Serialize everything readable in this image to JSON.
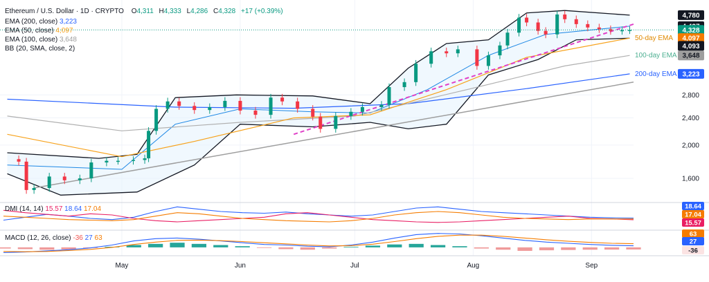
{
  "header": {
    "symbol": "Ethereum / U.S. Dollar · 1D · CRYPTO",
    "ohlc": [
      {
        "k": "O",
        "v": "4,311"
      },
      {
        "k": "H",
        "v": "4,333"
      },
      {
        "k": "L",
        "v": "4,286"
      },
      {
        "k": "C",
        "v": "4,328"
      }
    ],
    "change": "+17 (+0.39%)",
    "colors": {
      "up": "#089981",
      "down": "#f23645",
      "text": "#131722",
      "grid": "#f0f3fa"
    }
  },
  "indicators": [
    {
      "label": "EMA (200, close)",
      "value": "3,223",
      "color": "#2962ff"
    },
    {
      "label": "EMA (50, close)",
      "value": "4,097",
      "color": "#f7a21b"
    },
    {
      "label": "EMA (100, close)",
      "value": "3,648",
      "color": "#9e9e9e"
    },
    {
      "label": "BB (20, SMA, close, 2)",
      "value": "",
      "color": "#131722"
    }
  ],
  "annotations": [
    {
      "text": "50-day EMA",
      "color": "#e08a00",
      "price": 4097
    },
    {
      "text": "100-day EMA",
      "color": "#4caf91",
      "price": 3648
    },
    {
      "text": "200-day EMA",
      "color": "#2962ff",
      "price": 3223
    }
  ],
  "price_tags": [
    {
      "text": "4,780",
      "price": 4780,
      "bg": "#131722",
      "fg": "#ffffff"
    },
    {
      "text": "4,437",
      "price": 4437,
      "bg": "#131722",
      "fg": "#ffffff"
    },
    {
      "text": "4,328",
      "price": 4328,
      "bg": "#089981",
      "fg": "#ffffff"
    },
    {
      "text": "4,097",
      "price": 4097,
      "bg": "#f57c00",
      "fg": "#ffffff"
    },
    {
      "text": "4,093",
      "price": 4093,
      "bg": "#131722",
      "fg": "#ffffff"
    },
    {
      "text": "3,648",
      "price": 3648,
      "bg": "#9e9e9e",
      "fg": "#131722"
    },
    {
      "text": "3,223",
      "price": 3223,
      "bg": "#2962ff",
      "fg": "#ffffff"
    }
  ],
  "chart_data": {
    "type": "line",
    "y_scale": "log",
    "ylim": [
      1380,
      5050
    ],
    "y_ticks": [
      {
        "label": "2,800",
        "value": 2800
      },
      {
        "label": "2,400",
        "value": 2400
      },
      {
        "label": "2,000",
        "value": 2000
      },
      {
        "label": "1,600",
        "value": 1600
      }
    ],
    "x_ticks": [
      {
        "label": "May",
        "x": "2025-05-01"
      },
      {
        "label": "Jun",
        "x": "2025-06-01"
      },
      {
        "label": "Jul",
        "x": "2025-07-01"
      },
      {
        "label": "Aug",
        "x": "2025-08-01"
      },
      {
        "label": "Sep",
        "x": "2025-09-01"
      }
    ],
    "x_range": [
      "2025-03-31",
      "2025-09-12"
    ],
    "current_price": 4328,
    "close_series": [
      [
        "2025-04-01",
        1820
      ],
      [
        "2025-04-04",
        1790
      ],
      [
        "2025-04-06",
        1480
      ],
      [
        "2025-04-08",
        1500
      ],
      [
        "2025-04-12",
        1620
      ],
      [
        "2025-04-16",
        1580
      ],
      [
        "2025-04-20",
        1600
      ],
      [
        "2025-04-23",
        1780
      ],
      [
        "2025-04-27",
        1800
      ],
      [
        "2025-04-30",
        1800
      ],
      [
        "2025-05-04",
        1810
      ],
      [
        "2025-05-07",
        1830
      ],
      [
        "2025-05-08",
        2200
      ],
      [
        "2025-05-10",
        2550
      ],
      [
        "2025-05-13",
        2680
      ],
      [
        "2025-05-16",
        2600
      ],
      [
        "2025-05-20",
        2530
      ],
      [
        "2025-05-24",
        2580
      ],
      [
        "2025-05-28",
        2690
      ],
      [
        "2025-06-01",
        2520
      ],
      [
        "2025-06-05",
        2450
      ],
      [
        "2025-06-09",
        2750
      ],
      [
        "2025-06-12",
        2680
      ],
      [
        "2025-06-16",
        2550
      ],
      [
        "2025-06-20",
        2420
      ],
      [
        "2025-06-22",
        2230
      ],
      [
        "2025-06-26",
        2430
      ],
      [
        "2025-06-30",
        2500
      ],
      [
        "2025-07-03",
        2580
      ],
      [
        "2025-07-08",
        2620
      ],
      [
        "2025-07-10",
        2950
      ],
      [
        "2025-07-14",
        3050
      ],
      [
        "2025-07-17",
        3450
      ],
      [
        "2025-07-21",
        3750
      ],
      [
        "2025-07-25",
        3700
      ],
      [
        "2025-07-28",
        3800
      ],
      [
        "2025-08-02",
        3400
      ],
      [
        "2025-08-05",
        3650
      ],
      [
        "2025-08-08",
        3900
      ],
      [
        "2025-08-10",
        4250
      ],
      [
        "2025-08-13",
        4700
      ],
      [
        "2025-08-15",
        4550
      ],
      [
        "2025-08-18",
        4300
      ],
      [
        "2025-08-20",
        4200
      ],
      [
        "2025-08-23",
        4800
      ],
      [
        "2025-08-25",
        4650
      ],
      [
        "2025-08-28",
        4500
      ],
      [
        "2025-08-31",
        4400
      ],
      [
        "2025-09-03",
        4350
      ],
      [
        "2025-09-06",
        4300
      ],
      [
        "2025-09-09",
        4320
      ],
      [
        "2025-09-11",
        4328
      ]
    ],
    "series": [
      {
        "name": "EMA (200, close)",
        "color": "#2962ff",
        "points": [
          [
            "2025-04-01",
            2720
          ],
          [
            "2025-05-15",
            2580
          ],
          [
            "2025-06-15",
            2560
          ],
          [
            "2025-07-15",
            2640
          ],
          [
            "2025-08-15",
            2920
          ],
          [
            "2025-09-11",
            3223
          ]
        ]
      },
      {
        "name": "EMA (100, close)",
        "color": "#b0b0b0",
        "points": [
          [
            "2025-04-01",
            2430
          ],
          [
            "2025-05-01",
            2200
          ],
          [
            "2025-06-01",
            2330
          ],
          [
            "2025-07-01",
            2430
          ],
          [
            "2025-08-01",
            2930
          ],
          [
            "2025-08-25",
            3400
          ],
          [
            "2025-09-11",
            3648
          ]
        ]
      },
      {
        "name": "EMA (50, close)",
        "color": "#f7a21b",
        "points": [
          [
            "2025-04-01",
            2150
          ],
          [
            "2025-05-01",
            1850
          ],
          [
            "2025-05-20",
            2050
          ],
          [
            "2025-06-15",
            2400
          ],
          [
            "2025-07-05",
            2450
          ],
          [
            "2025-07-25",
            2900
          ],
          [
            "2025-08-15",
            3600
          ],
          [
            "2025-09-11",
            4097
          ]
        ]
      }
    ],
    "bollinger": {
      "upper": [
        [
          "2025-04-01",
          1900
        ],
        [
          "2025-04-25",
          1830
        ],
        [
          "2025-05-05",
          1880
        ],
        [
          "2025-05-15",
          2750
        ],
        [
          "2025-05-31",
          2800
        ],
        [
          "2025-06-20",
          2780
        ],
        [
          "2025-07-05",
          2640
        ],
        [
          "2025-07-15",
          3350
        ],
        [
          "2025-07-25",
          3950
        ],
        [
          "2025-08-05",
          4050
        ],
        [
          "2025-08-15",
          4850
        ],
        [
          "2025-08-25",
          4930
        ],
        [
          "2025-09-11",
          4780
        ]
      ],
      "lower": [
        [
          "2025-04-01",
          1650
        ],
        [
          "2025-04-15",
          1430
        ],
        [
          "2025-05-05",
          1460
        ],
        [
          "2025-05-20",
          1750
        ],
        [
          "2025-06-01",
          2300
        ],
        [
          "2025-06-20",
          2260
        ],
        [
          "2025-07-05",
          2330
        ],
        [
          "2025-07-15",
          2230
        ],
        [
          "2025-07-25",
          2300
        ],
        [
          "2025-08-05",
          3200
        ],
        [
          "2025-08-18",
          3550
        ],
        [
          "2025-08-28",
          4050
        ],
        [
          "2025-09-11",
          4093
        ]
      ],
      "middle": [
        [
          "2025-04-01",
          1750
        ],
        [
          "2025-05-01",
          1700
        ],
        [
          "2025-05-15",
          2300
        ],
        [
          "2025-06-01",
          2550
        ],
        [
          "2025-06-20",
          2500
        ],
        [
          "2025-07-05",
          2480
        ],
        [
          "2025-07-20",
          2900
        ],
        [
          "2025-08-05",
          3650
        ],
        [
          "2025-08-20",
          4200
        ],
        [
          "2025-09-11",
          4437
        ]
      ]
    },
    "trend_lines": [
      {
        "style": "dashed",
        "color": "#e040c8",
        "points": [
          [
            "2025-06-15",
            2150
          ],
          [
            "2025-09-12",
            4500
          ]
        ]
      },
      {
        "style": "solid",
        "color": "#9e9e9e",
        "points": [
          [
            "2025-04-08",
            1500
          ],
          [
            "2025-09-12",
            3050
          ]
        ]
      }
    ]
  },
  "dmi": {
    "label": "DMI (14, 14)",
    "values": [
      {
        "v": "15.57",
        "color": "#e91e63"
      },
      {
        "v": "18.64",
        "color": "#2962ff"
      },
      {
        "v": "17.04",
        "color": "#f57c00"
      }
    ],
    "tags": [
      {
        "text": "18.64",
        "bg": "#2962ff"
      },
      {
        "text": "17.04",
        "bg": "#f57c00"
      },
      {
        "text": "15.57",
        "bg": "#e91e63"
      }
    ],
    "series": [
      {
        "name": "+DI",
        "color": "#2962ff",
        "values": [
          15,
          20,
          25,
          22,
          18,
          16,
          20,
          30,
          38,
          34,
          30,
          28,
          27,
          29,
          26,
          24,
          22,
          24,
          30,
          36,
          38,
          34,
          30,
          28,
          26,
          24,
          22,
          20,
          19,
          18.64
        ]
      },
      {
        "name": "-DI",
        "color": "#e91e63",
        "values": [
          32,
          28,
          25,
          22,
          26,
          24,
          18,
          14,
          12,
          14,
          16,
          18,
          20,
          26,
          28,
          24,
          20,
          16,
          14,
          12,
          11,
          12,
          14,
          16,
          18,
          20,
          22,
          18,
          17,
          15.57
        ]
      },
      {
        "name": "ADX",
        "color": "#f57c00",
        "values": [
          22,
          20,
          18,
          16,
          15,
          14,
          16,
          22,
          28,
          26,
          22,
          18,
          16,
          14,
          13,
          12,
          14,
          18,
          24,
          28,
          30,
          28,
          24,
          20,
          18,
          17,
          16,
          17,
          17,
          17.04
        ]
      }
    ]
  },
  "macd": {
    "label": "MACD (12, 26, close)",
    "values": [
      {
        "v": "-36",
        "color": "#ef5350"
      },
      {
        "v": "27",
        "color": "#2962ff"
      },
      {
        "v": "63",
        "color": "#f57c00"
      }
    ],
    "tags": [
      {
        "text": "63",
        "bg": "#f57c00"
      },
      {
        "text": "27",
        "bg": "#2962ff"
      },
      {
        "text": "-36",
        "bg": "#fbe3e3"
      }
    ],
    "hist": [
      -20,
      -30,
      -40,
      -35,
      -10,
      10,
      40,
      60,
      80,
      60,
      40,
      20,
      -10,
      -30,
      -40,
      -20,
      10,
      30,
      50,
      60,
      40,
      20,
      -20,
      -40,
      -60,
      -50,
      -45,
      -40,
      -38,
      -36
    ],
    "macd_line": [
      -90,
      -80,
      -60,
      -40,
      -10,
      40,
      110,
      150,
      160,
      140,
      110,
      80,
      50,
      40,
      20,
      10,
      40,
      90,
      160,
      220,
      240,
      230,
      200,
      160,
      120,
      90,
      70,
      50,
      35,
      27
    ],
    "signal_line": [
      -70,
      -75,
      -70,
      -55,
      -35,
      0,
      50,
      90,
      120,
      125,
      115,
      100,
      80,
      60,
      40,
      25,
      30,
      55,
      100,
      150,
      190,
      210,
      210,
      190,
      160,
      130,
      105,
      85,
      70,
      63
    ]
  }
}
